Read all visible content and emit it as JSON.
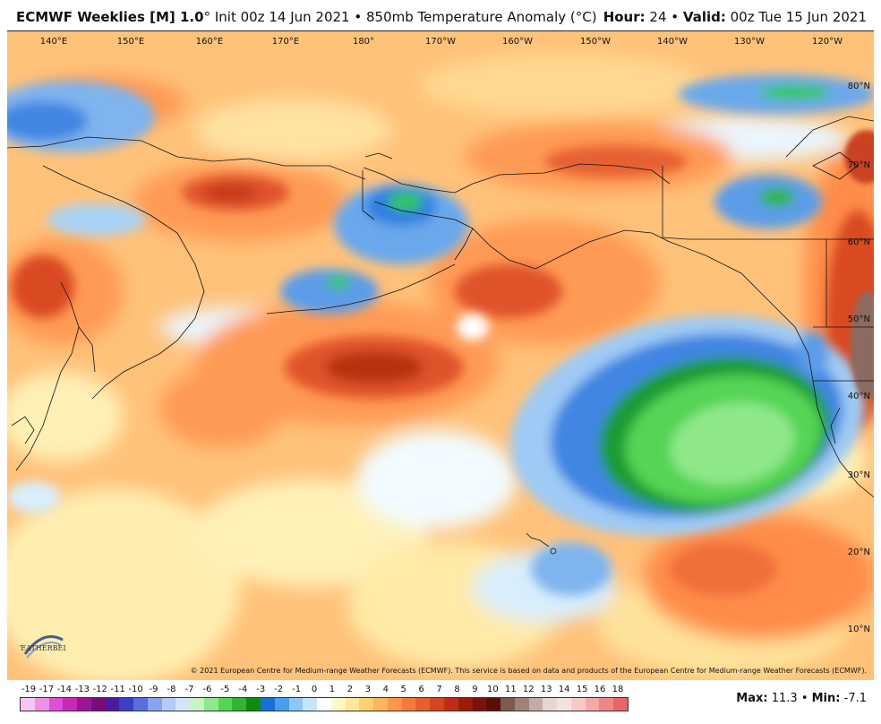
{
  "header": {
    "model": "ECMWF Weeklies [M] 1.0",
    "degree": "°",
    "init": "Init 00z 14 Jun 2021",
    "bullet": "•",
    "field": "850mb Temperature Anomaly (°C)",
    "hour_label": "Hour:",
    "hour_value": "24",
    "valid_label": "Valid:",
    "valid_value": "00z Tue 15 Jun 2021"
  },
  "longitudes": [
    "140°E",
    "150°E",
    "160°E",
    "170°E",
    "180°",
    "170°W",
    "160°W",
    "150°W",
    "140°W",
    "130°W",
    "120°W"
  ],
  "latitudes": [
    "80°N",
    "70°N",
    "60°N",
    "50°N",
    "40°N",
    "30°N",
    "20°N",
    "10°N"
  ],
  "copyright": "© 2021 European Centre for Medium-range Weather Forecasts (ECMWF). This service is based on data and products of the European Centre for Medium-range Weather Forecasts (ECMWF).",
  "logo_text": "WEATHERBELL",
  "colorbar": {
    "labels": [
      "-19",
      "-17",
      "-14",
      "-13",
      "-12",
      "-11",
      "-10",
      "-9",
      "-8",
      "-7",
      "-6",
      "-5",
      "-4",
      "-3",
      "-2",
      "-1",
      "0",
      "1",
      "2",
      "3",
      "4",
      "5",
      "6",
      "7",
      "8",
      "9",
      "10",
      "11",
      "12",
      "13",
      "14",
      "15",
      "16",
      "18"
    ],
    "colors": [
      "#f7c6f2",
      "#ee90e6",
      "#e04fd6",
      "#c927b8",
      "#9b1597",
      "#7a0c78",
      "#4b1aa0",
      "#3b3fc4",
      "#5a6ee0",
      "#8aa3ee",
      "#b7c9f5",
      "#d8e3fb",
      "#c5f3c2",
      "#8fe88a",
      "#55d455",
      "#2fb52f",
      "#118a11",
      "#1a6fd6",
      "#4a9cf0",
      "#8fc7f7",
      "#c4e6fb",
      "#ffffff",
      "#fff6c9",
      "#ffe89a",
      "#ffd070",
      "#ffb35c",
      "#ff964a",
      "#f57a3c",
      "#e85f2c",
      "#d6441f",
      "#bd2c14",
      "#9c1b0b",
      "#7a1208",
      "#5a0e07",
      "#7c5a4f",
      "#9f837a",
      "#c2aca5",
      "#e5d6d2",
      "#f3e2e0",
      "#f9c9c9",
      "#f6a9a9",
      "#f08787",
      "#e86565"
    ]
  },
  "maxmin": {
    "max_label": "Max:",
    "max_value": "11.3",
    "min_label": "Min:",
    "min_value": "-7.1"
  }
}
